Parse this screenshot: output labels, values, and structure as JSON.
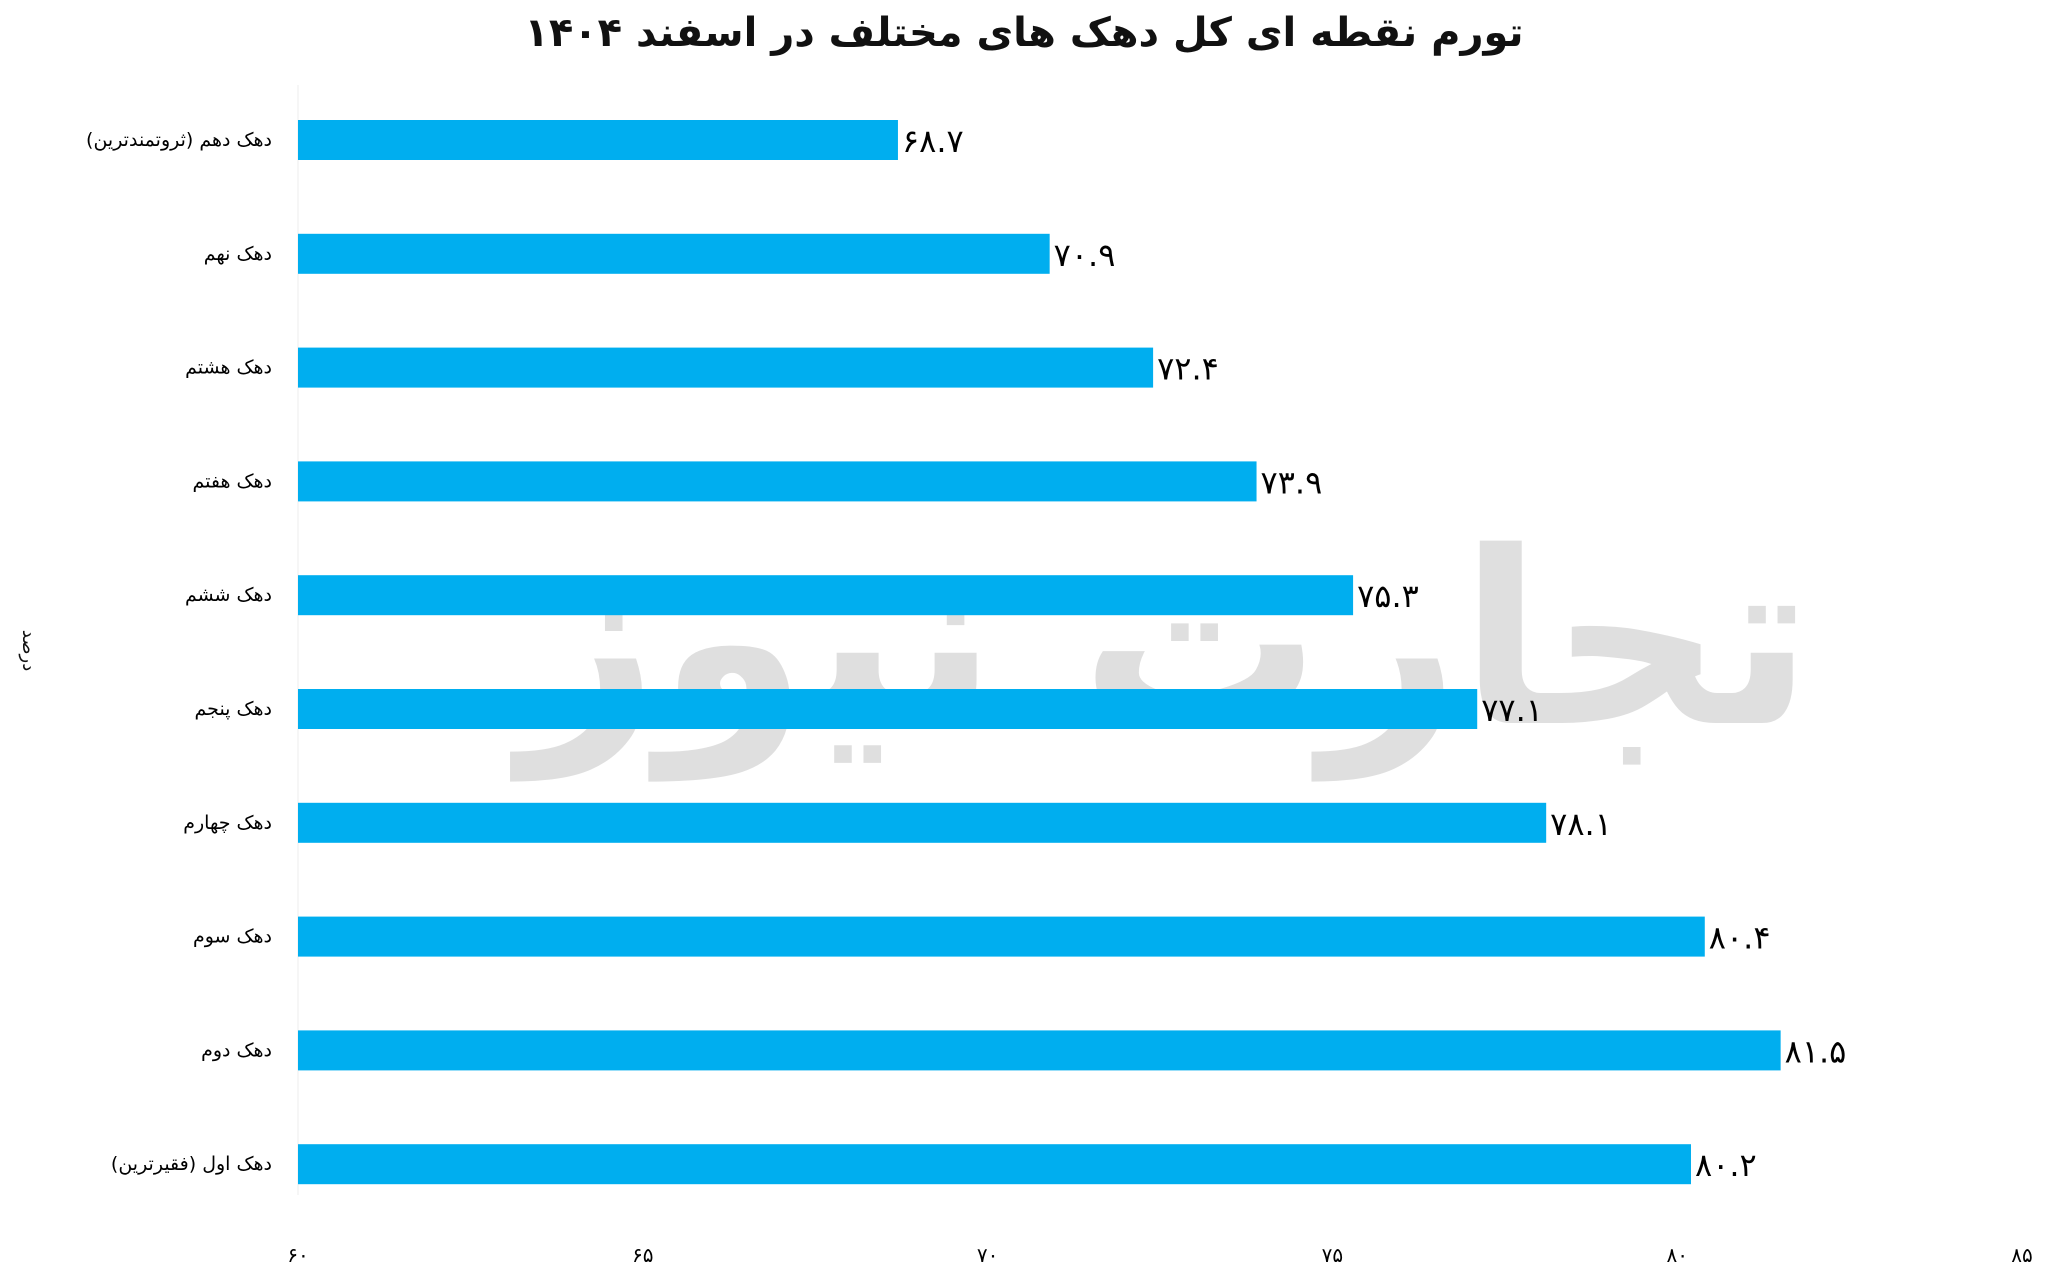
{
  "chart_data": {
    "type": "bar",
    "orientation": "horizontal",
    "title": "تورم نقطه ای کل دهک های مختلف در اسفند ۱۴۰۴",
    "ylabel": "درصد",
    "xlabel": "",
    "xlim": [
      60,
      85
    ],
    "ticks": [
      60,
      65,
      70,
      75,
      80,
      85
    ],
    "tick_labels": [
      "۶۰",
      "۶۵",
      "۷۰",
      "۷۵",
      "۸۰",
      "۸۵"
    ],
    "grid": false,
    "bar_color": "#00AEEF",
    "categories": [
      "دهک دهم (ثروتمندترین)",
      "دهک نهم",
      "دهک هشتم",
      "دهک هفتم",
      "دهک ششم",
      "دهک پنجم",
      "دهک چهارم",
      "دهک سوم",
      "دهک دوم",
      "دهک اول (فقیرترین)"
    ],
    "values": [
      68.7,
      70.9,
      72.4,
      73.9,
      75.3,
      77.1,
      78.1,
      80.4,
      81.5,
      80.2
    ],
    "value_labels": [
      "۶۸.۷",
      "۷۰.۹",
      "۷۲.۴",
      "۷۳.۹",
      "۷۵.۳",
      "۷۷.۱",
      "۷۸.۱",
      "۸۰.۴",
      "۸۱.۵",
      "۸۰.۲"
    ]
  },
  "watermark": "تجارت نیوز"
}
